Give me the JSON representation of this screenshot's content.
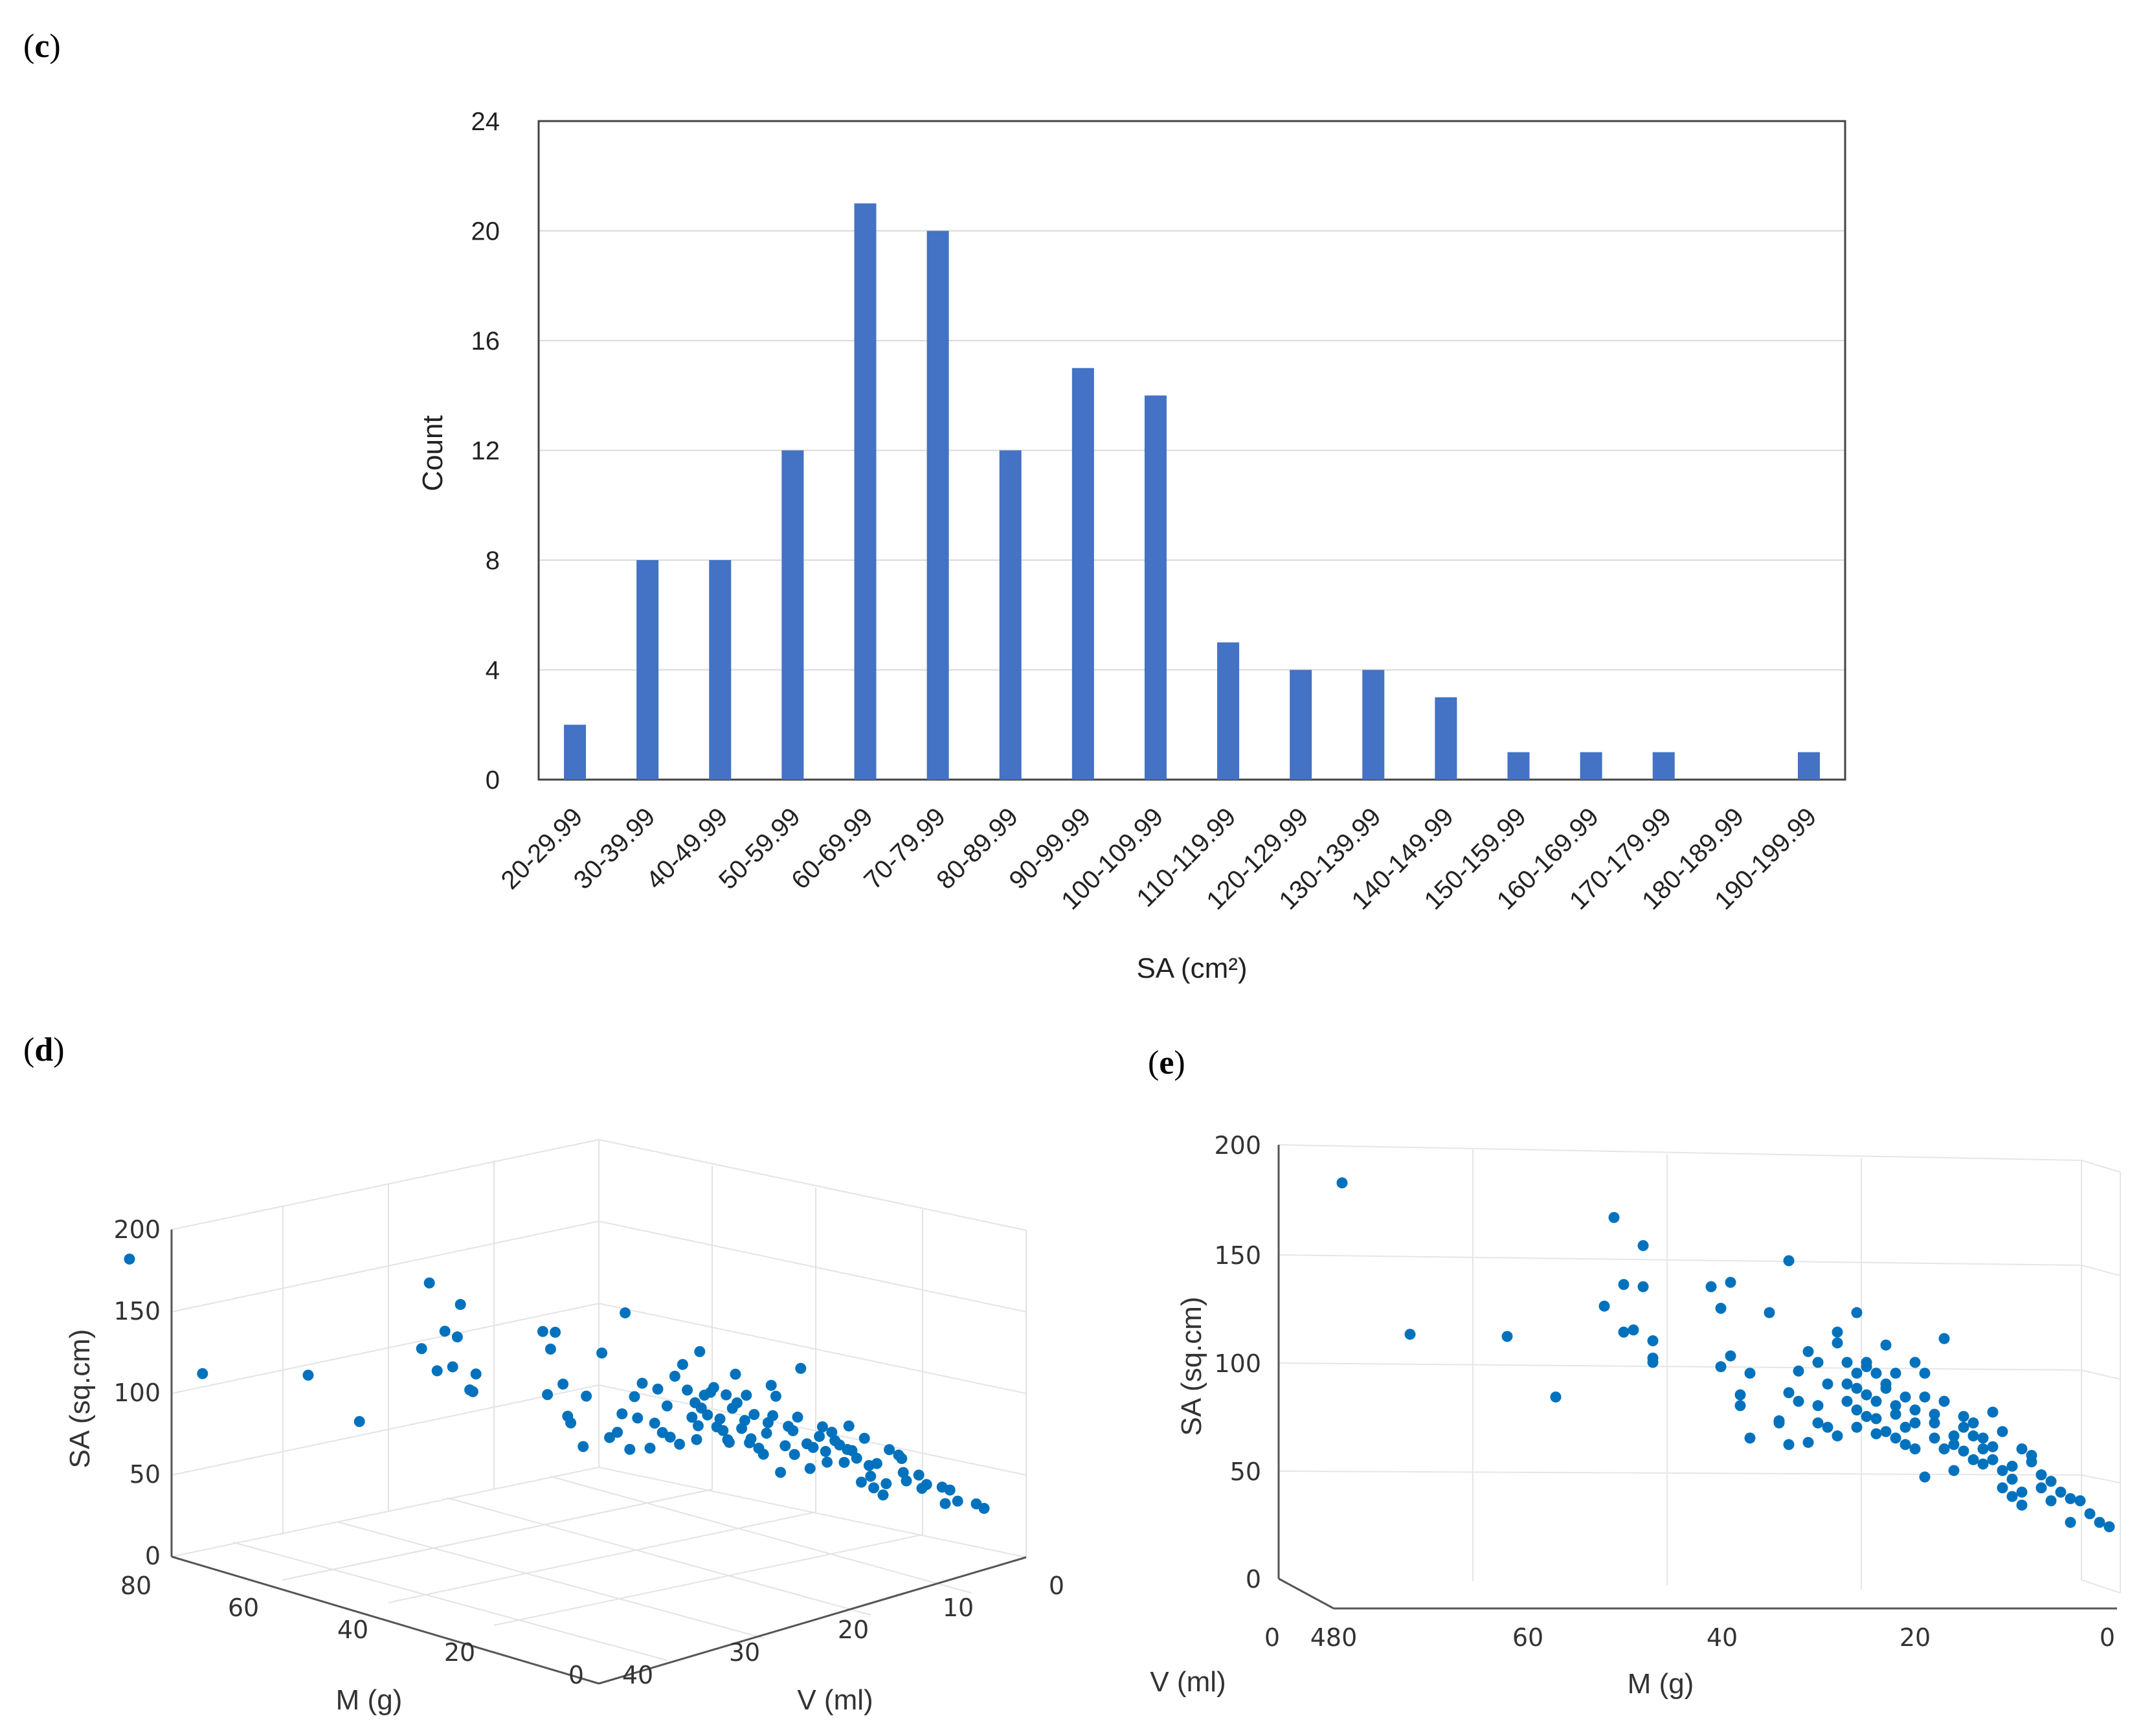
{
  "labels": {
    "c": "c",
    "d": "d",
    "e": "e"
  },
  "chart_data": [
    {
      "type": "bar",
      "title": "",
      "xlabel": "SA (cm²)",
      "ylabel": "Count",
      "ylim": [
        0,
        24
      ],
      "yticks": [
        "0",
        "4",
        "8",
        "12",
        "16",
        "20",
        "24"
      ],
      "categories": [
        "20-29.99",
        "30-39.99",
        "40-49.99",
        "50-59.99",
        "60-69.99",
        "70-79.99",
        "80-89.99",
        "90-99.99",
        "100-109.99",
        "110-119.99",
        "120-129.99",
        "130-139.99",
        "140-149.99",
        "150-159.99",
        "160-169.99",
        "170-179.99",
        "180-189.99",
        "190-199.99"
      ],
      "values": [
        2,
        8,
        8,
        12,
        21,
        20,
        12,
        15,
        14,
        5,
        4,
        4,
        3,
        1,
        1,
        1,
        0,
        1
      ],
      "color": "#4472c4"
    },
    {
      "type": "scatter",
      "projection": "3d",
      "xlabel": "M (g)",
      "ylabel": "V (ml)",
      "zlabel": "SA (sq.cm)",
      "xticks": [
        "80",
        "60",
        "40",
        "20",
        "0"
      ],
      "yticks": [
        "40",
        "30",
        "20",
        "10",
        "0"
      ],
      "zticks": [
        "0",
        "50",
        "100",
        "150",
        "200"
      ],
      "color": "#0072bd"
    },
    {
      "type": "scatter",
      "projection": "3d-side",
      "xlabel": "M (g)",
      "ylabel": "V (ml)",
      "zlabel": "SA (sq.cm)",
      "xticks": [
        "60",
        "40",
        "20",
        "0"
      ],
      "xtick_overlap": "480",
      "ytick_zero": "0",
      "zticks": [
        "0",
        "50",
        "100",
        "150",
        "200"
      ],
      "color": "#0072bd",
      "points": [
        [
          79,
          183
        ],
        [
          72,
          113
        ],
        [
          62,
          112
        ],
        [
          57,
          84
        ],
        [
          52,
          126
        ],
        [
          51,
          167
        ],
        [
          50,
          114
        ],
        [
          50,
          136
        ],
        [
          49,
          115
        ],
        [
          48,
          154
        ],
        [
          48,
          135
        ],
        [
          47,
          110
        ],
        [
          47,
          100
        ],
        [
          47,
          102
        ],
        [
          41,
          135
        ],
        [
          40,
          125
        ],
        [
          40,
          98
        ],
        [
          39,
          137
        ],
        [
          39,
          103
        ],
        [
          38,
          80
        ],
        [
          38,
          85
        ],
        [
          37,
          95
        ],
        [
          37,
          65
        ],
        [
          35,
          123
        ],
        [
          34,
          72
        ],
        [
          34,
          73
        ],
        [
          33,
          147
        ],
        [
          33,
          86
        ],
        [
          33,
          62
        ],
        [
          32,
          82
        ],
        [
          32,
          96
        ],
        [
          31,
          105
        ],
        [
          31,
          63
        ],
        [
          30,
          100
        ],
        [
          30,
          80
        ],
        [
          30,
          72
        ],
        [
          29,
          70
        ],
        [
          29,
          90
        ],
        [
          28,
          109
        ],
        [
          28,
          114
        ],
        [
          28,
          66
        ],
        [
          27,
          100
        ],
        [
          27,
          90
        ],
        [
          27,
          82
        ],
        [
          26,
          123
        ],
        [
          26,
          70
        ],
        [
          26,
          95
        ],
        [
          26,
          88
        ],
        [
          26,
          78
        ],
        [
          25,
          75
        ],
        [
          25,
          100
        ],
        [
          25,
          98
        ],
        [
          25,
          85
        ],
        [
          24,
          95
        ],
        [
          24,
          74
        ],
        [
          24,
          82
        ],
        [
          24,
          67
        ],
        [
          23,
          108
        ],
        [
          23,
          88
        ],
        [
          23,
          68
        ],
        [
          23,
          90
        ],
        [
          22,
          80
        ],
        [
          22,
          76
        ],
        [
          22,
          65
        ],
        [
          22,
          95
        ],
        [
          21,
          84
        ],
        [
          21,
          70
        ],
        [
          21,
          62
        ],
        [
          20,
          72
        ],
        [
          20,
          60
        ],
        [
          20,
          100
        ],
        [
          20,
          78
        ],
        [
          19,
          95
        ],
        [
          19,
          84
        ],
        [
          19,
          47
        ],
        [
          18,
          76
        ],
        [
          18,
          65
        ],
        [
          18,
          72
        ],
        [
          17,
          111
        ],
        [
          17,
          82
        ],
        [
          17,
          60
        ],
        [
          16,
          62
        ],
        [
          16,
          50
        ],
        [
          16,
          66
        ],
        [
          15,
          59
        ],
        [
          15,
          75
        ],
        [
          15,
          70
        ],
        [
          14,
          55
        ],
        [
          14,
          66
        ],
        [
          14,
          72
        ],
        [
          13,
          65
        ],
        [
          13,
          60
        ],
        [
          13,
          53
        ],
        [
          12,
          61
        ],
        [
          12,
          77
        ],
        [
          12,
          55
        ],
        [
          11,
          68
        ],
        [
          11,
          42
        ],
        [
          11,
          50
        ],
        [
          10,
          52
        ],
        [
          10,
          38
        ],
        [
          10,
          46
        ],
        [
          9,
          60
        ],
        [
          9,
          40
        ],
        [
          9,
          34
        ],
        [
          8,
          54
        ],
        [
          8,
          57
        ],
        [
          7,
          42
        ],
        [
          7,
          48
        ],
        [
          6,
          36
        ],
        [
          6,
          45
        ],
        [
          5,
          40
        ],
        [
          4,
          26
        ],
        [
          4,
          37
        ],
        [
          3,
          36
        ],
        [
          2,
          30
        ],
        [
          1,
          26
        ],
        [
          0,
          24
        ]
      ]
    }
  ]
}
